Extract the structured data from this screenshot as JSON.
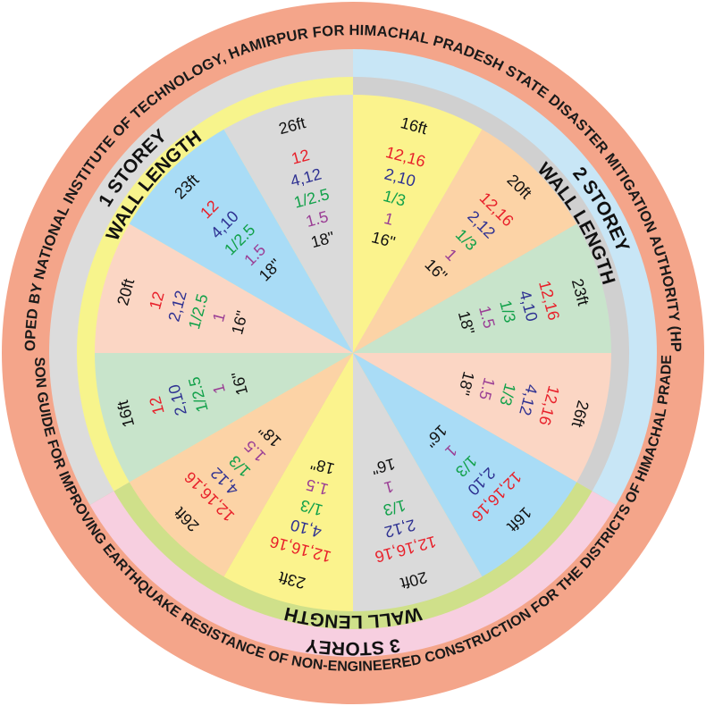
{
  "outer_text_top": "DEVELOPED BY NATIONAL INSTITUTE OF TECHNOLOGY, HAMIRPUR FOR HIMACHAL PRADESH STATE DISASTER MITIGATION AUTHORITY (HPSDMA)",
  "outer_text_bottom": "MASON GUIDE FOR IMPROVING EARTHQUAKE RESISTANCE OF NON-ENGINEERED CONSTRUCTION FOR THE DISTRICTS OF HIMACHAL PRADESH",
  "groups": {
    "one_storey": {
      "storey": "1 STOREY",
      "wall": "WALL LENGTH"
    },
    "two_storey": {
      "storey": "2 STOREY",
      "wall": "WALL LENGTH"
    },
    "three_storey": {
      "storey": "3 STOREY",
      "wall": "WALL LENGTH"
    }
  },
  "colors": {
    "outer_ring": "#f4a58a",
    "ring_one_outer": "#dcdcdc",
    "ring_one_inner": "#f7f48c",
    "ring_two_outer": "#c8e6f6",
    "ring_two_inner": "#d0d0d0",
    "ring_three_outer": "#f7cfe0",
    "ring_three_inner": "#cfe08a",
    "value_red": "#e8202a",
    "value_blue": "#2e3192",
    "value_green": "#12a14a",
    "value_purple": "#9b3f95",
    "value_black": "#111111"
  },
  "sectors": [
    {
      "group": "two_storey",
      "fill": "#fbf38d",
      "length": "16ft",
      "values": [
        "12,16",
        "2,10",
        "1/3",
        "1",
        "16\""
      ]
    },
    {
      "group": "two_storey",
      "fill": "#fcd3a6",
      "length": "20ft",
      "values": [
        "12,16",
        "2,12",
        "1/3",
        "1",
        "16\""
      ]
    },
    {
      "group": "two_storey",
      "fill": "#c8e4cb",
      "length": "23ft",
      "values": [
        "12,16",
        "4,10",
        "1/3",
        "1.5",
        "18\""
      ]
    },
    {
      "group": "two_storey",
      "fill": "#fbd6c4",
      "length": "26ft",
      "values": [
        "12,16",
        "4,12",
        "1/3",
        "1.5",
        "18\""
      ]
    },
    {
      "group": "three_storey",
      "fill": "#a9dcf6",
      "length": "16ft",
      "values": [
        "12,16,16",
        "2,10",
        "1/3",
        "1",
        "16\""
      ]
    },
    {
      "group": "three_storey",
      "fill": "#dadada",
      "length": "20ft",
      "values": [
        "12,16,16",
        "2,12",
        "1/3",
        "1",
        "16\""
      ]
    },
    {
      "group": "three_storey",
      "fill": "#fbf38d",
      "length": "23ft",
      "values": [
        "12,16,16",
        "4,10",
        "1/3",
        "1.5",
        "18\""
      ]
    },
    {
      "group": "three_storey",
      "fill": "#fcd3a6",
      "length": "26ft",
      "values": [
        "12,16,16",
        "4,12",
        "1/3",
        "1.5",
        "18\""
      ]
    },
    {
      "group": "one_storey",
      "fill": "#c8e4cb",
      "length": "16ft",
      "values": [
        "12",
        "2,10",
        "1/2.5",
        "1",
        "16\""
      ]
    },
    {
      "group": "one_storey",
      "fill": "#fbd6c4",
      "length": "20ft",
      "values": [
        "12",
        "2,12",
        "1/2.5",
        "1",
        "16\""
      ]
    },
    {
      "group": "one_storey",
      "fill": "#a9dcf6",
      "length": "23ft",
      "values": [
        "12",
        "4,10",
        "1/2.5",
        "1.5",
        "18\""
      ]
    },
    {
      "group": "one_storey",
      "fill": "#dadada",
      "length": "26ft",
      "values": [
        "12",
        "4,12",
        "1/2.5",
        "1.5",
        "18\""
      ]
    }
  ]
}
